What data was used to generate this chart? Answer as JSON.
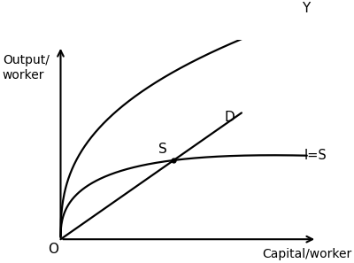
{
  "background_color": "#ffffff",
  "xlabel": "Capital/worker",
  "ylabel": "Output/\nworker",
  "origin_label": "O",
  "curve_Y": {
    "label": "Y",
    "color": "#000000",
    "linewidth": 1.6
  },
  "curve_IS": {
    "label": "I=S",
    "color": "#000000",
    "linewidth": 1.6
  },
  "curve_D": {
    "label": "D",
    "color": "#000000",
    "linewidth": 1.6
  },
  "point_S": {
    "label": "S",
    "color": "#000000"
  },
  "label_fontsize": 11,
  "axis_label_fontsize": 10,
  "figsize": [
    4.0,
    2.97
  ],
  "dpi": 100,
  "xlim": [
    -0.3,
    10.5
  ],
  "ylim": [
    -0.5,
    9.5
  ]
}
